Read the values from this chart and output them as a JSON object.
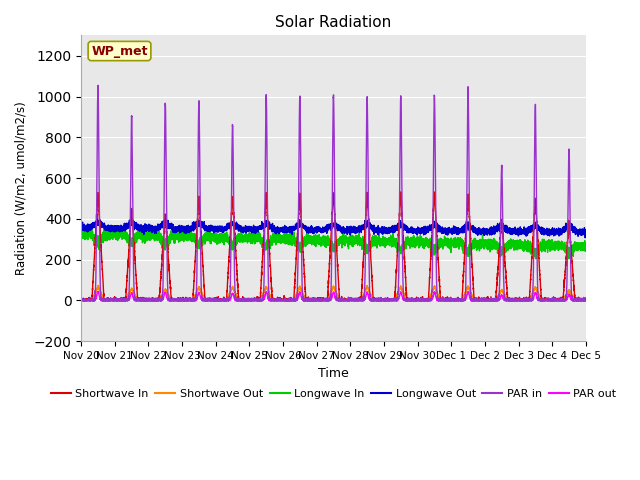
{
  "title": "Solar Radiation",
  "xlabel": "Time",
  "ylabel": "Radiation (W/m2, umol/m2/s)",
  "ylim": [
    -200,
    1300
  ],
  "yticks": [
    -200,
    0,
    200,
    400,
    600,
    800,
    1000,
    1200
  ],
  "xlim": [
    0,
    15
  ],
  "plot_bg_color": "#e8e8e8",
  "grid_color": "white",
  "label_box_text": "WP_met",
  "label_box_color": "#ffffcc",
  "label_box_edge": "#999900",
  "label_text_color": "#880000",
  "series": {
    "shortwave_in": {
      "color": "#dd0000",
      "label": "Shortwave In",
      "lw": 1.0
    },
    "shortwave_out": {
      "color": "#ff8800",
      "label": "Shortwave Out",
      "lw": 1.0
    },
    "longwave_in": {
      "color": "#00cc00",
      "label": "Longwave In",
      "lw": 1.0
    },
    "longwave_out": {
      "color": "#0000cc",
      "label": "Longwave Out",
      "lw": 1.0
    },
    "par_in": {
      "color": "#9933cc",
      "label": "PAR in",
      "lw": 1.0
    },
    "par_out": {
      "color": "#ff00ff",
      "label": "PAR out",
      "lw": 1.0
    }
  },
  "xtick_labels": [
    "Nov 20",
    "Nov 21",
    "Nov 22",
    "Nov 23",
    "Nov 24",
    "Nov 25",
    "Nov 26",
    "Nov 27",
    "Nov 28",
    "Nov 29",
    "Nov 30",
    "Dec 1",
    "Dec 2",
    "Dec 3",
    "Dec 4",
    "Dec 5"
  ],
  "xtick_positions": [
    0,
    1,
    2,
    3,
    4,
    5,
    6,
    7,
    8,
    9,
    10,
    11,
    12,
    13,
    14,
    15
  ],
  "n_days": 15,
  "pts_per_day": 480,
  "seed": 42
}
